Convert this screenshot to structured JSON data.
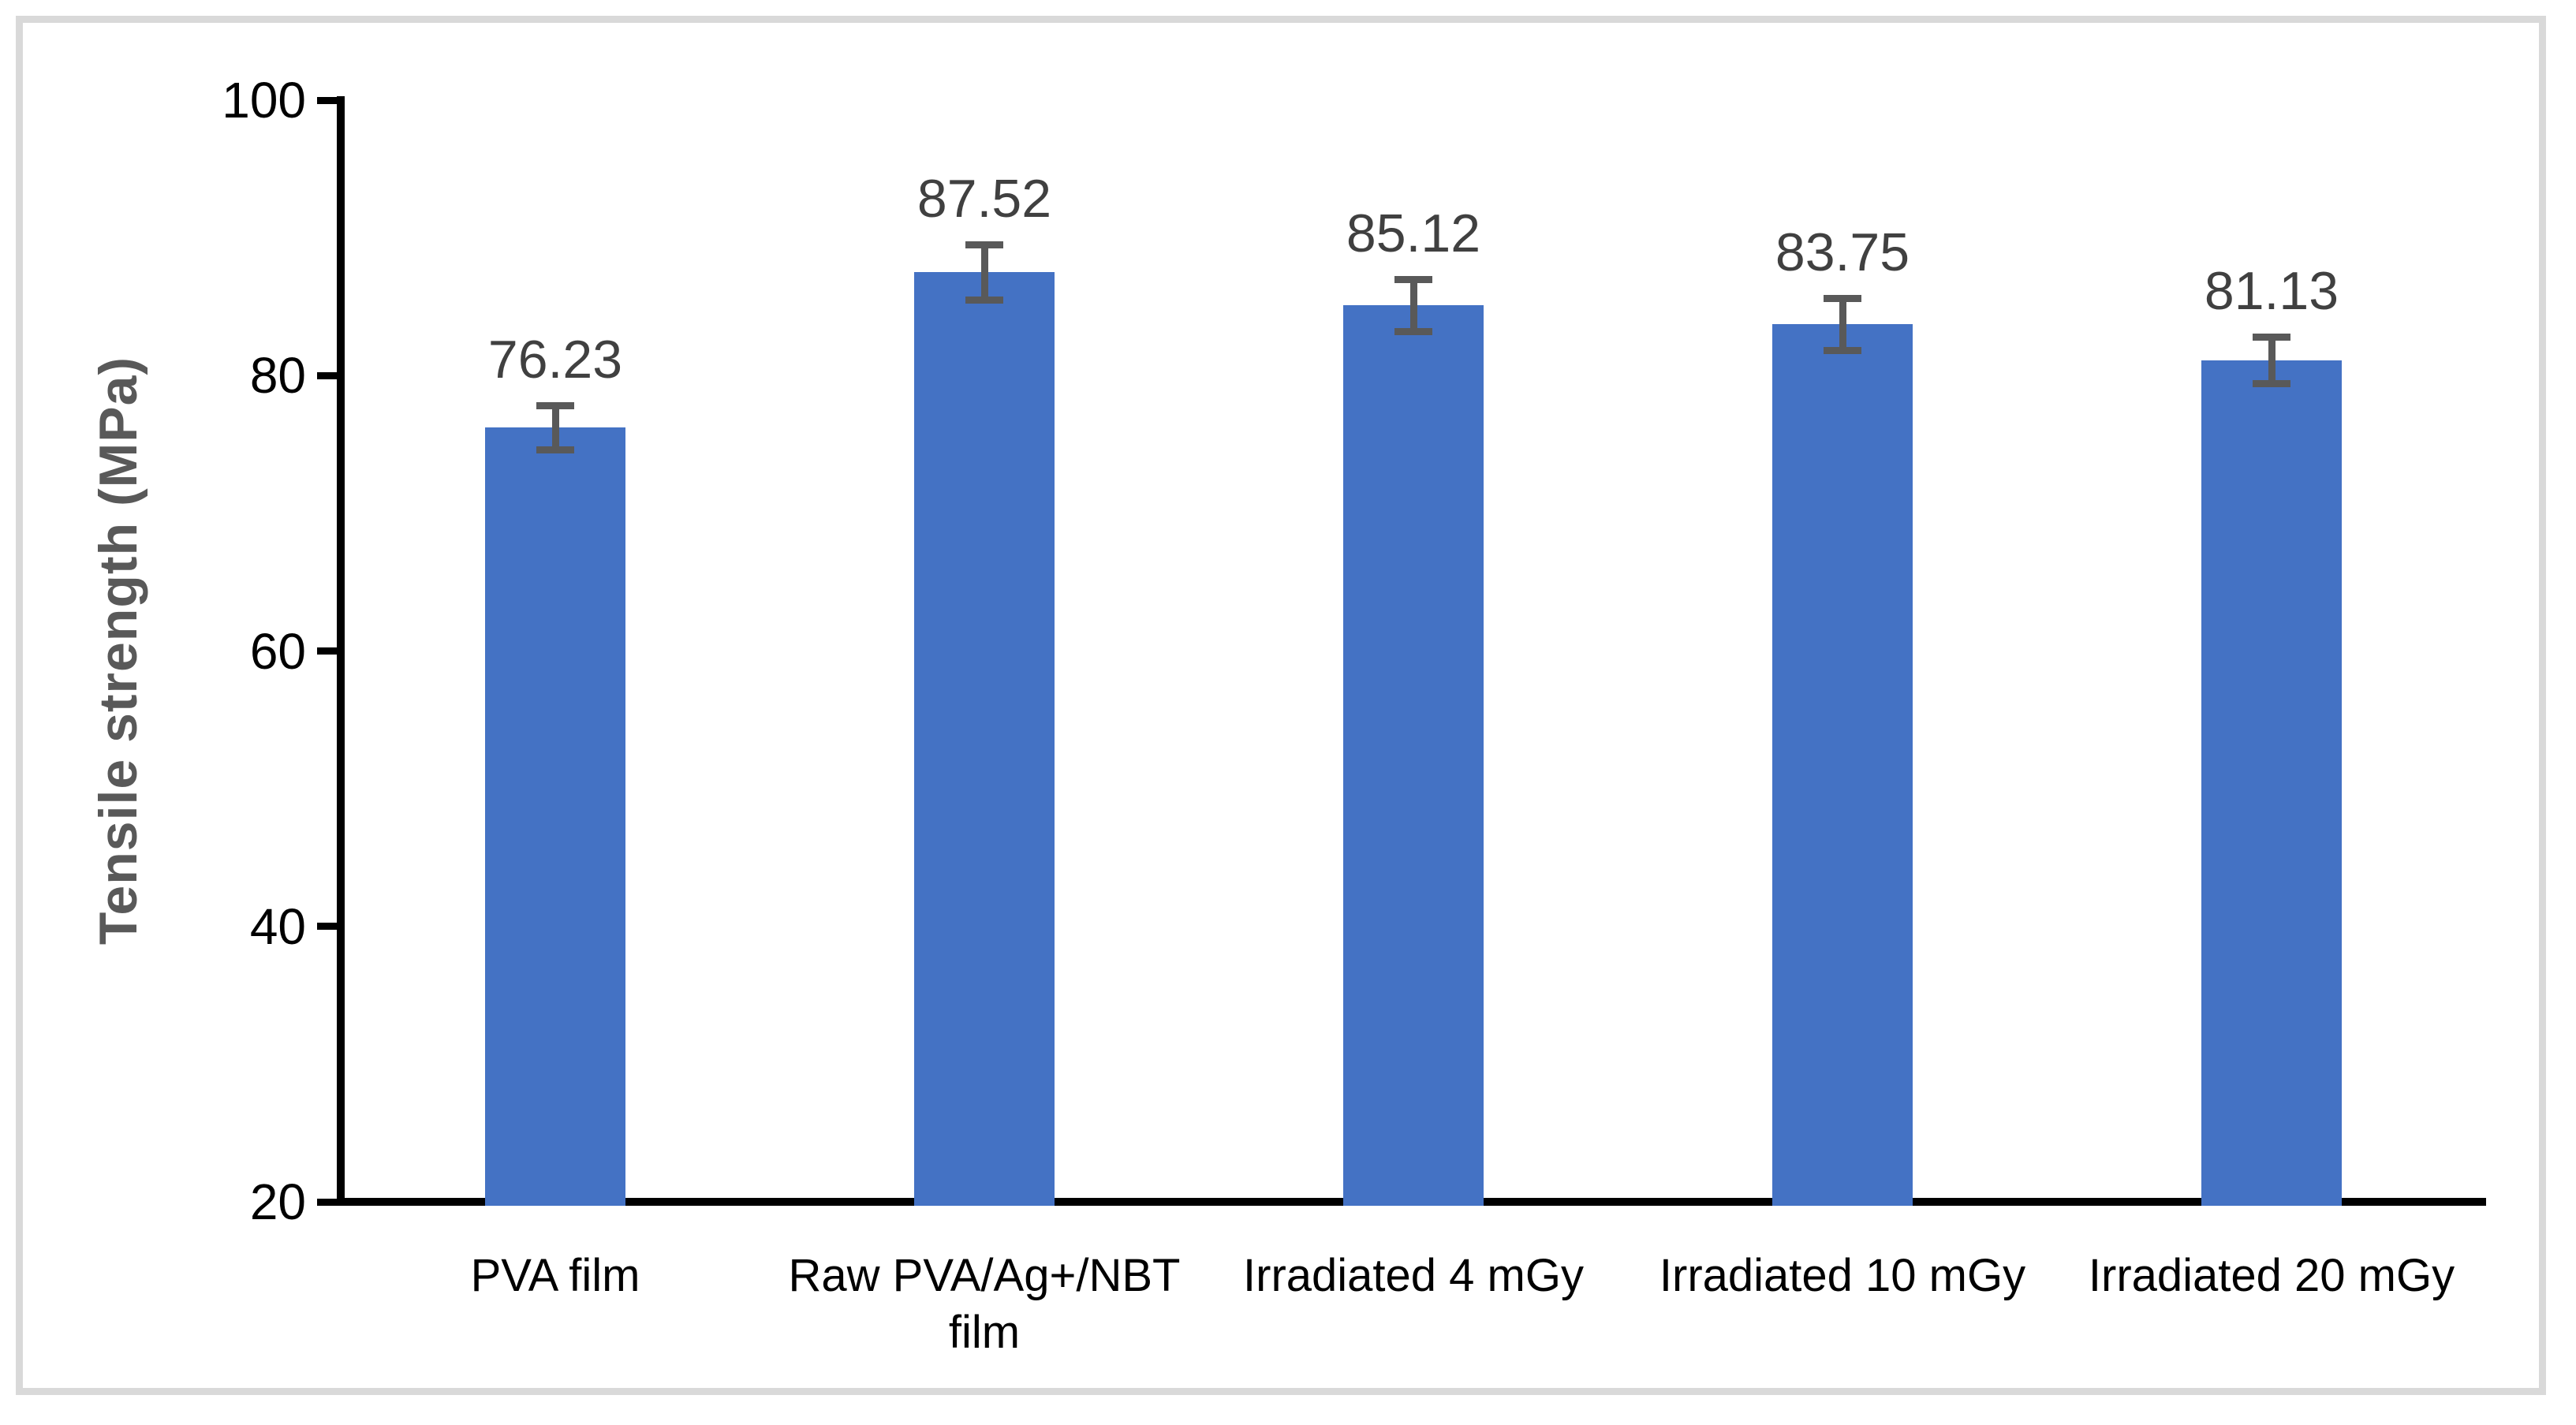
{
  "figure": {
    "background_color": "#FFFFFF",
    "border_color": "#D9D9D9"
  },
  "chart_data": {
    "type": "bar",
    "title": "",
    "xlabel": "",
    "ylabel": "Tensile strength (MPa)",
    "ylim": [
      20,
      100
    ],
    "yticks": [
      "20",
      "40",
      "60",
      "80",
      "100"
    ],
    "ytick_values": [
      20,
      40,
      60,
      80,
      100
    ],
    "grid": false,
    "legend_position": "none",
    "categories": [
      "PVA film",
      "Raw PVA/Ag+/NBT film",
      "Irradiated 4 mGy",
      "Irradiated 10 mGy",
      "Irradiated 20 mGy"
    ],
    "values": [
      76.23,
      87.52,
      85.12,
      83.75,
      81.13
    ],
    "data_labels": [
      "76.23",
      "87.52",
      "85.12",
      "83.75",
      "81.13"
    ],
    "error_bars": [
      1.6,
      2.0,
      1.9,
      1.9,
      1.7
    ],
    "bar_color": "#4472C4",
    "error_bar_color": "#595959",
    "data_label_color": "#404040",
    "tick_label_color": "#000000",
    "category_label_color": "#000000",
    "ylabel_color": "#595959",
    "axis_color": "#000000"
  }
}
